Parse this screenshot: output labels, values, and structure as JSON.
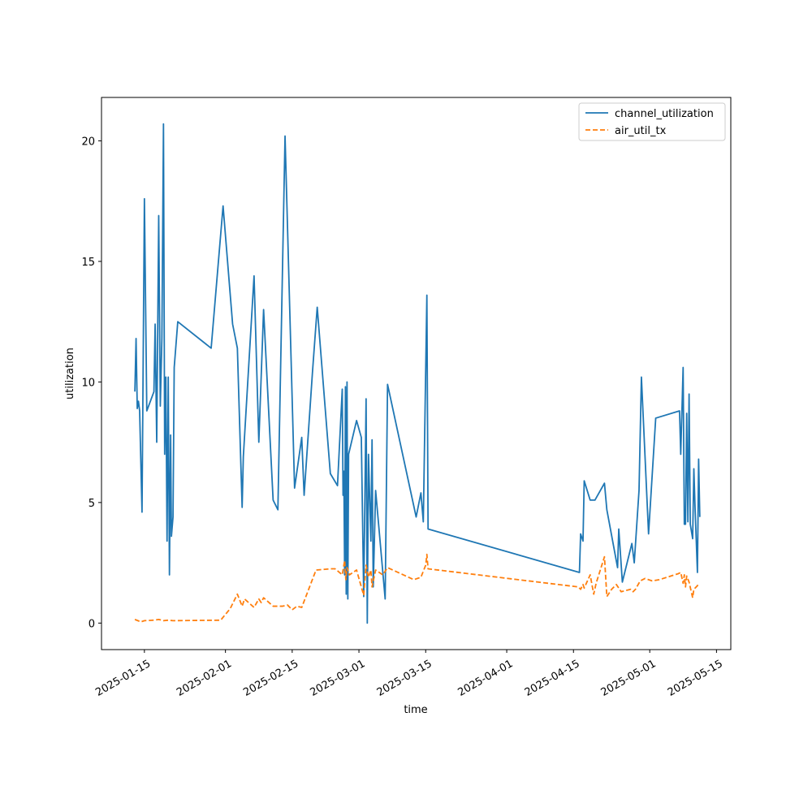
{
  "chart_data": {
    "type": "line",
    "title": "",
    "xlabel": "time",
    "ylabel": "utilization",
    "x_tick_labels": [
      "2025-01-15",
      "2025-02-01",
      "2025-02-15",
      "2025-03-01",
      "2025-03-15",
      "2025-04-01",
      "2025-04-15",
      "2025-05-01",
      "2025-05-15"
    ],
    "y_tick_labels": [
      "0",
      "5",
      "10",
      "15",
      "20"
    ],
    "xlim": [
      "2025-01-06",
      "2025-05-18"
    ],
    "ylim": [
      -1.1,
      21.8
    ],
    "grid": false,
    "legend_position": "top-right",
    "series": [
      {
        "name": "channel_utilization",
        "color": "#1f77b4",
        "dash": "solid",
        "points": [
          [
            "2025-01-13T00:00",
            9.6
          ],
          [
            "2025-01-13T06:00",
            11.8
          ],
          [
            "2025-01-13T12:00",
            8.9
          ],
          [
            "2025-01-13T18:00",
            9.2
          ],
          [
            "2025-01-14T00:00",
            8.8
          ],
          [
            "2025-01-14T12:00",
            4.6
          ],
          [
            "2025-01-15T00:00",
            17.6
          ],
          [
            "2025-01-15T12:00",
            8.8
          ],
          [
            "2025-01-17T00:00",
            9.6
          ],
          [
            "2025-01-17T06:00",
            12.4
          ],
          [
            "2025-01-17T14:00",
            7.5
          ],
          [
            "2025-01-18T00:00",
            16.9
          ],
          [
            "2025-01-18T08:00",
            9.0
          ],
          [
            "2025-01-18T16:00",
            11.8
          ],
          [
            "2025-01-19T00:00",
            20.7
          ],
          [
            "2025-01-19T06:00",
            7.0
          ],
          [
            "2025-01-19T12:00",
            10.2
          ],
          [
            "2025-01-19T18:00",
            3.4
          ],
          [
            "2025-01-20T00:00",
            10.2
          ],
          [
            "2025-01-20T06:00",
            2.0
          ],
          [
            "2025-01-20T12:00",
            7.8
          ],
          [
            "2025-01-20T16:00",
            3.6
          ],
          [
            "2025-01-21T00:00",
            4.4
          ],
          [
            "2025-01-21T06:00",
            10.6
          ],
          [
            "2025-01-22T00:00",
            12.5
          ],
          [
            "2025-01-29T00:00",
            11.4
          ],
          [
            "2025-01-31T12:00",
            17.3
          ],
          [
            "2025-02-02T12:00",
            12.4
          ],
          [
            "2025-02-03T12:00",
            11.4
          ],
          [
            "2025-02-04T12:00",
            4.8
          ],
          [
            "2025-02-04T18:00",
            6.9
          ],
          [
            "2025-02-07T00:00",
            14.4
          ],
          [
            "2025-02-08T00:00",
            7.5
          ],
          [
            "2025-02-09T00:00",
            13.0
          ],
          [
            "2025-02-11T00:00",
            5.1
          ],
          [
            "2025-02-12T00:00",
            4.7
          ],
          [
            "2025-02-13T12:00",
            20.2
          ],
          [
            "2025-02-15T12:00",
            5.6
          ],
          [
            "2025-02-17T00:00",
            7.7
          ],
          [
            "2025-02-17T12:00",
            5.3
          ],
          [
            "2025-02-19T06:00",
            10.4
          ],
          [
            "2025-02-20T06:00",
            13.1
          ],
          [
            "2025-02-23T00:00",
            6.2
          ],
          [
            "2025-02-24T12:00",
            5.7
          ],
          [
            "2025-02-25T12:00",
            9.7
          ],
          [
            "2025-02-25T16:00",
            5.3
          ],
          [
            "2025-02-25T20:00",
            6.3
          ],
          [
            "2025-02-26T00:00",
            2.0
          ],
          [
            "2025-02-26T04:00",
            9.8
          ],
          [
            "2025-02-26T08:00",
            1.2
          ],
          [
            "2025-02-26T12:00",
            10.0
          ],
          [
            "2025-02-26T16:00",
            1.0
          ],
          [
            "2025-02-26T20:00",
            7.0
          ],
          [
            "2025-02-28T12:00",
            8.4
          ],
          [
            "2025-03-01T12:00",
            7.7
          ],
          [
            "2025-03-02T00:00",
            1.1
          ],
          [
            "2025-03-02T12:00",
            9.3
          ],
          [
            "2025-03-02T18:00",
            0.0
          ],
          [
            "2025-03-03T00:00",
            7.0
          ],
          [
            "2025-03-03T12:00",
            3.4
          ],
          [
            "2025-03-03T18:00",
            7.6
          ],
          [
            "2025-03-04T00:00",
            1.5
          ],
          [
            "2025-03-04T12:00",
            5.5
          ],
          [
            "2025-03-06T12:00",
            1.0
          ],
          [
            "2025-03-07T00:00",
            9.9
          ],
          [
            "2025-03-13T00:00",
            4.4
          ],
          [
            "2025-03-14T00:00",
            5.4
          ],
          [
            "2025-03-14T12:00",
            4.2
          ],
          [
            "2025-03-15T06:00",
            13.6
          ],
          [
            "2025-03-15T12:00",
            3.9
          ],
          [
            "2025-04-16T06:00",
            2.1
          ],
          [
            "2025-04-16T12:00",
            3.7
          ],
          [
            "2025-04-17T00:00",
            3.4
          ],
          [
            "2025-04-17T06:00",
            5.9
          ],
          [
            "2025-04-18T12:00",
            5.1
          ],
          [
            "2025-04-19T12:00",
            5.1
          ],
          [
            "2025-04-21T12:00",
            5.8
          ],
          [
            "2025-04-22T00:00",
            4.7
          ],
          [
            "2025-04-24T06:00",
            2.3
          ],
          [
            "2025-04-24T12:00",
            3.9
          ],
          [
            "2025-04-25T06:00",
            1.7
          ],
          [
            "2025-04-27T06:00",
            3.3
          ],
          [
            "2025-04-27T18:00",
            2.5
          ],
          [
            "2025-04-28T18:00",
            5.5
          ],
          [
            "2025-04-29T06:00",
            10.2
          ],
          [
            "2025-04-30T18:00",
            3.7
          ],
          [
            "2025-05-02T06:00",
            8.5
          ],
          [
            "2025-05-07T06:00",
            8.8
          ],
          [
            "2025-05-07T12:00",
            7.0
          ],
          [
            "2025-05-08T00:00",
            10.6
          ],
          [
            "2025-05-08T06:00",
            4.1
          ],
          [
            "2025-05-08T12:00",
            4.1
          ],
          [
            "2025-05-08T18:00",
            8.7
          ],
          [
            "2025-05-09T00:00",
            4.2
          ],
          [
            "2025-05-09T06:00",
            9.5
          ],
          [
            "2025-05-09T12:00",
            4.1
          ],
          [
            "2025-05-10T00:00",
            3.5
          ],
          [
            "2025-05-10T06:00",
            6.4
          ],
          [
            "2025-05-10T12:00",
            4.8
          ],
          [
            "2025-05-11T00:00",
            2.1
          ],
          [
            "2025-05-11T06:00",
            6.8
          ],
          [
            "2025-05-11T12:00",
            4.4
          ]
        ]
      },
      {
        "name": "air_util_tx",
        "color": "#ff7f0e",
        "dash": "dashed",
        "points": [
          [
            "2025-01-13T00:00",
            0.15
          ],
          [
            "2025-01-14T06:00",
            0.05
          ],
          [
            "2025-01-15T00:00",
            0.1
          ],
          [
            "2025-01-17T00:00",
            0.12
          ],
          [
            "2025-01-18T00:00",
            0.15
          ],
          [
            "2025-01-19T00:00",
            0.1
          ],
          [
            "2025-01-20T00:00",
            0.12
          ],
          [
            "2025-01-21T00:00",
            0.1
          ],
          [
            "2025-01-31T00:00",
            0.12
          ],
          [
            "2025-02-02T00:00",
            0.6
          ],
          [
            "2025-02-03T12:00",
            1.2
          ],
          [
            "2025-02-04T12:00",
            0.7
          ],
          [
            "2025-02-05T00:00",
            1.0
          ],
          [
            "2025-02-07T00:00",
            0.65
          ],
          [
            "2025-02-08T00:00",
            1.0
          ],
          [
            "2025-02-08T12:00",
            0.85
          ],
          [
            "2025-02-09T00:00",
            1.05
          ],
          [
            "2025-02-11T00:00",
            0.7
          ],
          [
            "2025-02-13T00:00",
            0.7
          ],
          [
            "2025-02-14T00:00",
            0.75
          ],
          [
            "2025-02-15T00:00",
            0.55
          ],
          [
            "2025-02-16T00:00",
            0.7
          ],
          [
            "2025-02-17T00:00",
            0.65
          ],
          [
            "2025-02-20T00:00",
            2.2
          ],
          [
            "2025-02-23T00:00",
            2.25
          ],
          [
            "2025-02-24T00:00",
            2.25
          ],
          [
            "2025-02-25T12:00",
            2.0
          ],
          [
            "2025-02-26T00:00",
            2.6
          ],
          [
            "2025-02-26T06:00",
            1.8
          ],
          [
            "2025-02-26T12:00",
            2.3
          ],
          [
            "2025-02-27T00:00",
            2.0
          ],
          [
            "2025-02-28T12:00",
            2.2
          ],
          [
            "2025-03-01T12:00",
            1.5
          ],
          [
            "2025-03-02T00:00",
            1.15
          ],
          [
            "2025-03-02T12:00",
            2.4
          ],
          [
            "2025-03-03T00:00",
            1.9
          ],
          [
            "2025-03-03T12:00",
            2.2
          ],
          [
            "2025-03-03T18:00",
            1.5
          ],
          [
            "2025-03-04T12:00",
            2.2
          ],
          [
            "2025-03-06T00:00",
            2.0
          ],
          [
            "2025-03-07T00:00",
            2.3
          ],
          [
            "2025-03-12T12:00",
            1.8
          ],
          [
            "2025-03-14T00:00",
            1.9
          ],
          [
            "2025-03-15T00:00",
            2.4
          ],
          [
            "2025-03-15T06:00",
            2.85
          ],
          [
            "2025-03-15T12:00",
            2.25
          ],
          [
            "2025-04-16T00:00",
            1.5
          ],
          [
            "2025-04-16T12:00",
            1.4
          ],
          [
            "2025-04-17T00:00",
            1.6
          ],
          [
            "2025-04-17T06:00",
            1.45
          ],
          [
            "2025-04-18T12:00",
            2.0
          ],
          [
            "2025-04-19T06:00",
            1.2
          ],
          [
            "2025-04-19T18:00",
            1.65
          ],
          [
            "2025-04-21T12:00",
            2.75
          ],
          [
            "2025-04-22T00:00",
            1.1
          ],
          [
            "2025-04-23T00:00",
            1.4
          ],
          [
            "2025-04-24T00:00",
            1.6
          ],
          [
            "2025-04-25T00:00",
            1.3
          ],
          [
            "2025-04-27T00:00",
            1.4
          ],
          [
            "2025-04-27T12:00",
            1.3
          ],
          [
            "2025-04-28T00:00",
            1.4
          ],
          [
            "2025-04-29T00:00",
            1.75
          ],
          [
            "2025-04-30T00:00",
            1.85
          ],
          [
            "2025-05-01T12:00",
            1.75
          ],
          [
            "2025-05-03T00:00",
            1.8
          ],
          [
            "2025-05-07T00:00",
            2.05
          ],
          [
            "2025-05-07T12:00",
            2.1
          ],
          [
            "2025-05-08T00:00",
            1.65
          ],
          [
            "2025-05-08T06:00",
            2.0
          ],
          [
            "2025-05-08T12:00",
            1.5
          ],
          [
            "2025-05-08T18:00",
            1.95
          ],
          [
            "2025-05-09T06:00",
            1.7
          ],
          [
            "2025-05-10T00:00",
            1.05
          ],
          [
            "2025-05-10T06:00",
            1.4
          ],
          [
            "2025-05-11T00:00",
            1.55
          ],
          [
            "2025-05-11T06:00",
            1.65
          ]
        ]
      }
    ]
  }
}
